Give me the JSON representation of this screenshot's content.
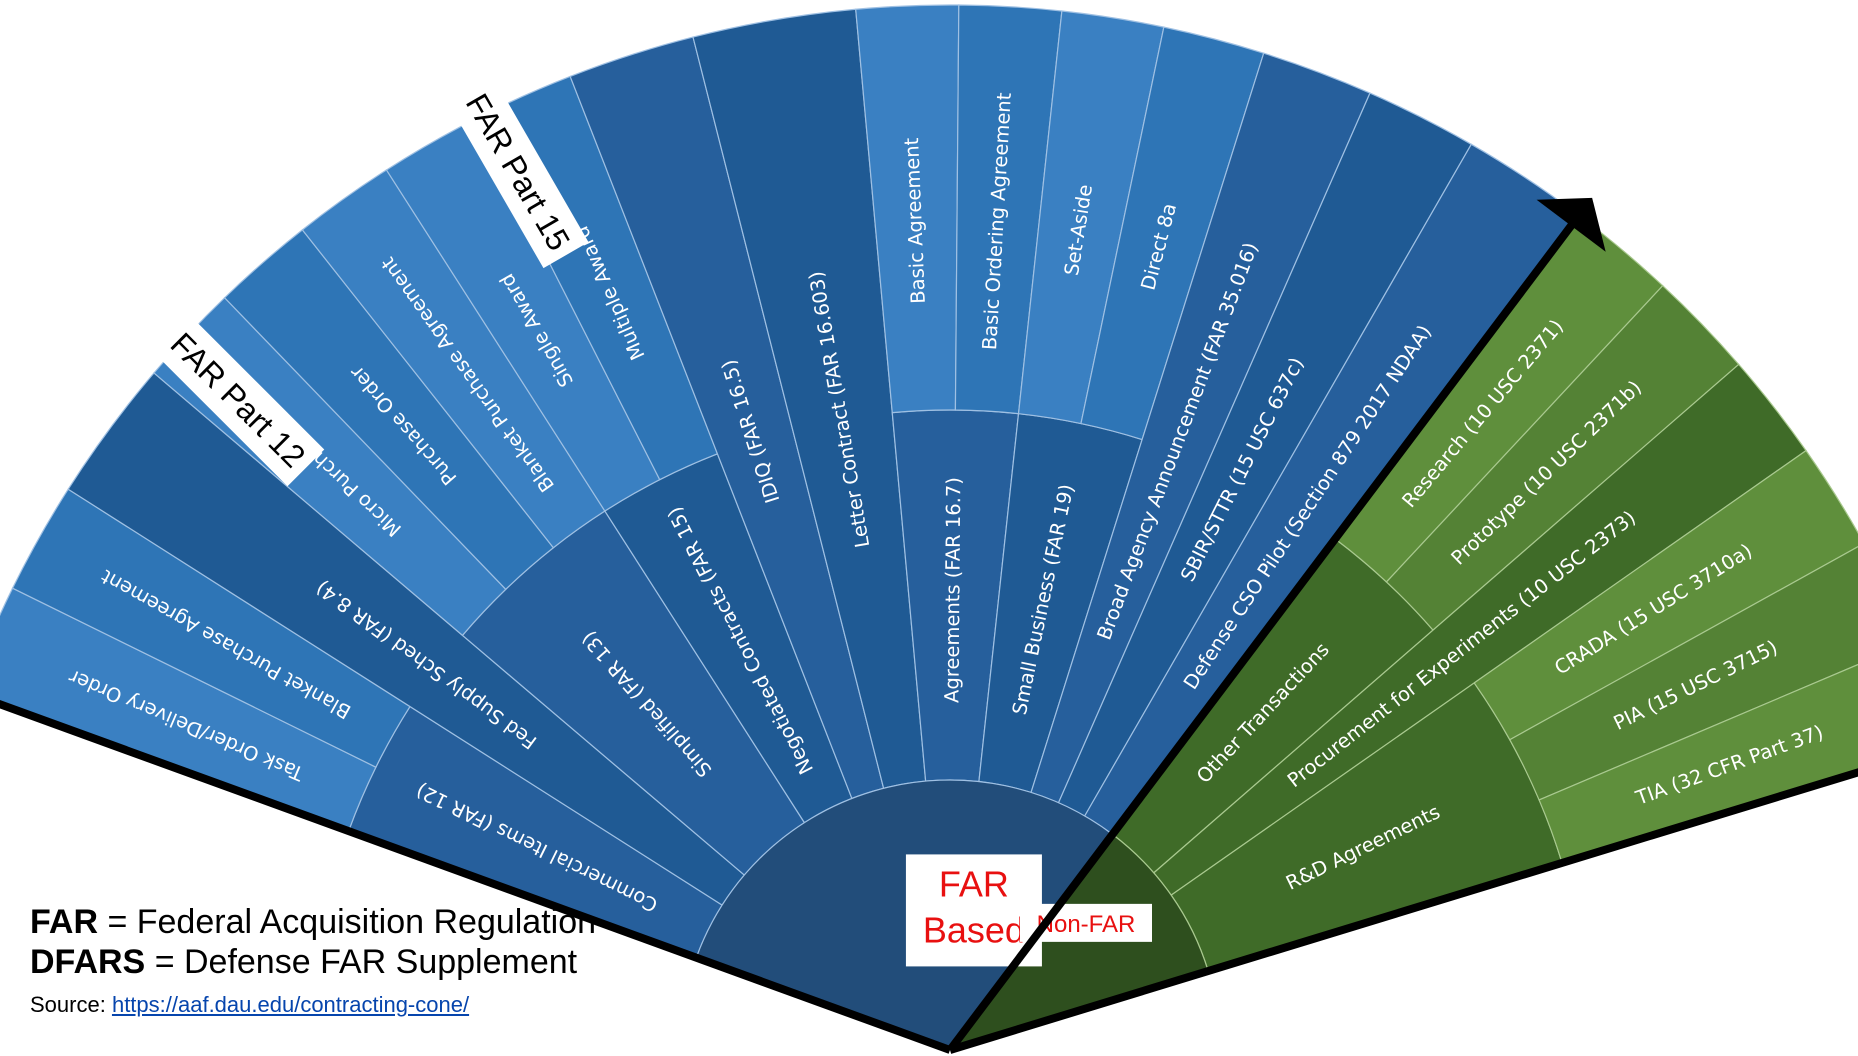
{
  "core_labels": {
    "far": [
      "FAR",
      "Based"
    ],
    "non_far": "Non-FAR"
  },
  "part_labels": [
    "FAR Part 12",
    "FAR Part 15"
  ],
  "colors": {
    "blue": "#2e75b6",
    "blue_dark": "#1f5a94",
    "blue_core": "#224d7a",
    "green": "#548235",
    "green_dark": "#3f6b28",
    "green_core": "#2e4f1e",
    "far_text": "#e81010",
    "divider": "#000000"
  },
  "far_segments": [
    {
      "category": "Commercial Items (FAR 12)",
      "items": [
        "Task Order/Delivery Order",
        "Blanket Purchase Agreement"
      ]
    },
    {
      "category": "Fed Supply Sched (FAR 8.4)",
      "items": []
    },
    {
      "category": "Simplified (FAR 13)",
      "items": [
        "Micro Purchase",
        "Purchase Order",
        "Blanket Purchase Agreement"
      ]
    },
    {
      "category": "Negotiated Contracts (FAR 15)",
      "items": [
        "Single Award",
        "Multiple Award"
      ]
    },
    {
      "category": "IDIQ (FAR 16.5)",
      "items": []
    },
    {
      "category": "Letter Contract (FAR 16.603)",
      "items": []
    },
    {
      "category": "Agreements (FAR 16.7)",
      "items": [
        "Basic Agreement",
        "Basic Ordering Agreement"
      ]
    },
    {
      "category": "Small Business (FAR 19)",
      "items": [
        "Set-Aside",
        "Direct 8a"
      ]
    },
    {
      "category": "Broad Agency Announcement  (FAR 35.016)",
      "items": []
    },
    {
      "category": "SBIR/STTR (15 USC 637c)",
      "items": []
    },
    {
      "category": "Defense CSO Pilot (Section 879 2017 NDAA)",
      "items": []
    }
  ],
  "nonfar_segments": [
    {
      "category": "Other Transactions",
      "items": [
        "Research (10 USC 2371)",
        "Prototype (10 USC 2371b)"
      ]
    },
    {
      "category": "Procurement for Experiments (10 USC 2373)",
      "items": []
    },
    {
      "category": "R&D Agreements",
      "items": [
        "CRADA (15 USC 3710a)",
        "PIA (15 USC 3715)",
        "TIA (32 CFR Part 37)"
      ]
    }
  ],
  "legend": {
    "far_term": "FAR",
    "far_def": "= Federal Acquisition Regulation",
    "dfars_term": "DFARS",
    "dfars_def": "= Defense FAR Supplement",
    "source_label": "Source:",
    "source_url": "https://aaf.dau.edu/contracting-cone/"
  }
}
